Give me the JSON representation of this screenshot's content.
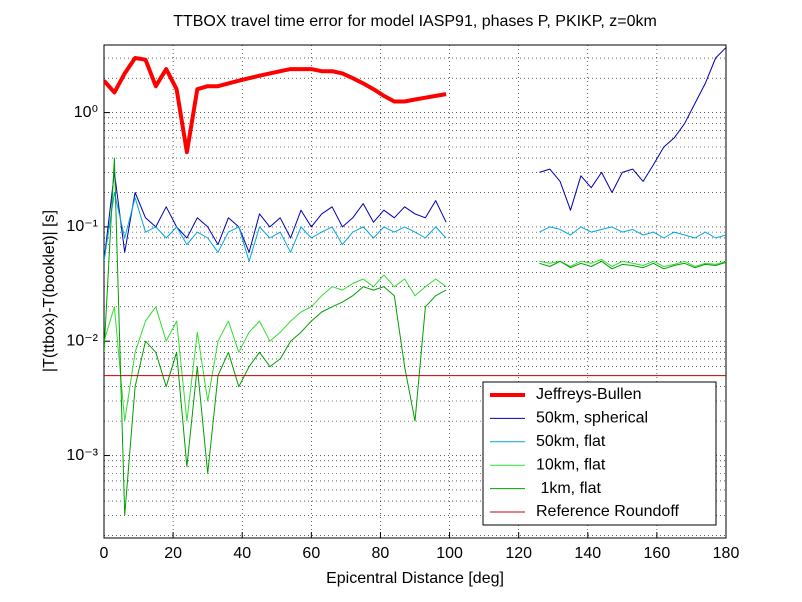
{
  "chart_data": {
    "type": "line",
    "title": "TTBOX travel time error for model IASP91, phases P, PKIKP, z=0km",
    "x_label": "Epicentral Distance [deg]",
    "y_label": "|T(ttbox)-T(booklet)| [s]",
    "x": [
      0,
      3,
      6,
      9,
      12,
      15,
      18,
      21,
      24,
      27,
      30,
      33,
      36,
      39,
      42,
      45,
      48,
      51,
      54,
      57,
      60,
      63,
      66,
      69,
      72,
      75,
      78,
      81,
      84,
      87,
      90,
      93,
      96,
      99,
      110,
      126,
      129,
      132,
      135,
      138,
      141,
      144,
      147,
      150,
      153,
      156,
      159,
      162,
      165,
      168,
      171,
      174,
      177,
      180
    ],
    "series": [
      {
        "name": "Jeffreys-Bullen",
        "color": "#ff0000",
        "line_width": 4,
        "values": [
          1.9,
          1.5,
          2.2,
          3.0,
          2.9,
          1.7,
          2.4,
          1.6,
          0.45,
          1.6,
          1.7,
          1.7,
          1.8,
          1.9,
          2.0,
          2.1,
          2.2,
          2.3,
          2.4,
          2.4,
          2.4,
          2.3,
          2.3,
          2.2,
          2.0,
          1.8,
          1.6,
          1.4,
          1.25,
          1.25,
          1.3,
          1.35,
          1.4,
          1.45,
          null,
          null,
          null,
          null,
          null,
          null,
          null,
          null,
          null,
          null,
          null,
          null,
          null,
          null,
          null,
          null,
          null,
          null,
          null,
          null
        ]
      },
      {
        "name": "50km, spherical",
        "color": "#0000b4",
        "line_width": 1,
        "values": [
          0.05,
          0.3,
          0.06,
          0.2,
          0.12,
          0.1,
          0.15,
          0.1,
          0.08,
          0.12,
          0.1,
          0.07,
          0.12,
          0.1,
          0.06,
          0.13,
          0.1,
          0.12,
          0.08,
          0.14,
          0.1,
          0.13,
          0.15,
          0.1,
          0.12,
          0.16,
          0.11,
          0.14,
          0.12,
          0.15,
          0.13,
          0.12,
          0.17,
          0.11,
          null,
          0.3,
          0.32,
          0.25,
          0.14,
          0.28,
          0.22,
          0.3,
          0.2,
          0.3,
          0.32,
          0.25,
          0.35,
          0.5,
          0.6,
          0.8,
          1.2,
          1.8,
          3.0,
          3.7
        ]
      },
      {
        "name": "50km, flat",
        "color": "#00a8e0",
        "line_width": 1,
        "values": [
          0.05,
          0.2,
          0.08,
          0.18,
          0.09,
          0.1,
          0.08,
          0.1,
          0.07,
          0.09,
          0.08,
          0.06,
          0.09,
          0.1,
          0.05,
          0.1,
          0.08,
          0.09,
          0.06,
          0.1,
          0.08,
          0.09,
          0.1,
          0.07,
          0.09,
          0.1,
          0.08,
          0.1,
          0.09,
          0.1,
          0.09,
          0.08,
          0.1,
          0.08,
          null,
          0.09,
          0.1,
          0.095,
          0.085,
          0.1,
          0.09,
          0.095,
          0.1,
          0.09,
          0.095,
          0.085,
          0.09,
          0.08,
          0.09,
          0.085,
          0.08,
          0.09,
          0.08,
          0.085
        ]
      },
      {
        "name": "10km, flat",
        "color": "#33dd33",
        "line_width": 1,
        "values": [
          0.01,
          0.02,
          0.002,
          0.008,
          0.015,
          0.02,
          0.01,
          0.015,
          0.002,
          0.012,
          0.003,
          0.01,
          0.015,
          0.008,
          0.012,
          0.015,
          0.01,
          0.012,
          0.015,
          0.018,
          0.02,
          0.025,
          0.03,
          0.028,
          0.032,
          0.035,
          0.03,
          0.038,
          0.03,
          0.035,
          0.025,
          0.03,
          0.035,
          0.03,
          null,
          0.05,
          0.048,
          0.05,
          0.045,
          0.05,
          0.048,
          0.052,
          0.045,
          0.05,
          0.048,
          0.046,
          0.05,
          0.045,
          0.047,
          0.05,
          0.045,
          0.048,
          0.047,
          0.05
        ]
      },
      {
        "name": " 1km, flat",
        "color": "#00a000",
        "line_width": 1,
        "values": [
          0.008,
          0.4,
          0.0003,
          0.004,
          0.01,
          0.008,
          0.004,
          0.008,
          0.0008,
          0.006,
          0.0007,
          0.005,
          0.008,
          0.004,
          0.006,
          0.008,
          0.006,
          0.007,
          0.01,
          0.012,
          0.015,
          0.018,
          0.02,
          0.022,
          0.025,
          0.03,
          0.028,
          0.03,
          0.025,
          0.006,
          0.002,
          0.02,
          0.025,
          0.028,
          null,
          0.048,
          0.045,
          0.05,
          0.044,
          0.048,
          0.045,
          0.05,
          0.043,
          0.047,
          0.046,
          0.044,
          0.048,
          0.043,
          0.046,
          0.048,
          0.044,
          0.047,
          0.046,
          0.049
        ]
      },
      {
        "name": "Reference Roundoff",
        "color": "#cc0000",
        "line_width": 1,
        "x": [
          0,
          180
        ],
        "values": [
          0.005,
          0.005
        ]
      }
    ],
    "xlim": [
      0,
      180
    ],
    "xticks": [
      0,
      20,
      40,
      60,
      80,
      100,
      120,
      140,
      160,
      180
    ],
    "ylim": [
      0.00019,
      3.9
    ],
    "log_y": true,
    "yticks": [
      {
        "value": 0.001,
        "label": "10⁻³"
      },
      {
        "value": 0.01,
        "label": "10⁻²"
      },
      {
        "value": 0.1,
        "label": "10⁻¹"
      },
      {
        "value": 1,
        "label": "10⁰"
      }
    ],
    "yminorticks": [
      0.0002,
      0.0003,
      0.0004,
      0.0005,
      0.0006,
      0.0007,
      0.0008,
      0.0009,
      0.002,
      0.003,
      0.004,
      0.005,
      0.006,
      0.007,
      0.008,
      0.009,
      0.02,
      0.03,
      0.04,
      0.05,
      0.06,
      0.07,
      0.08,
      0.09,
      0.2,
      0.3,
      0.4,
      0.5,
      0.6,
      0.7,
      0.8,
      0.9,
      2,
      3
    ],
    "grid": true,
    "legend_position": "lower right"
  }
}
